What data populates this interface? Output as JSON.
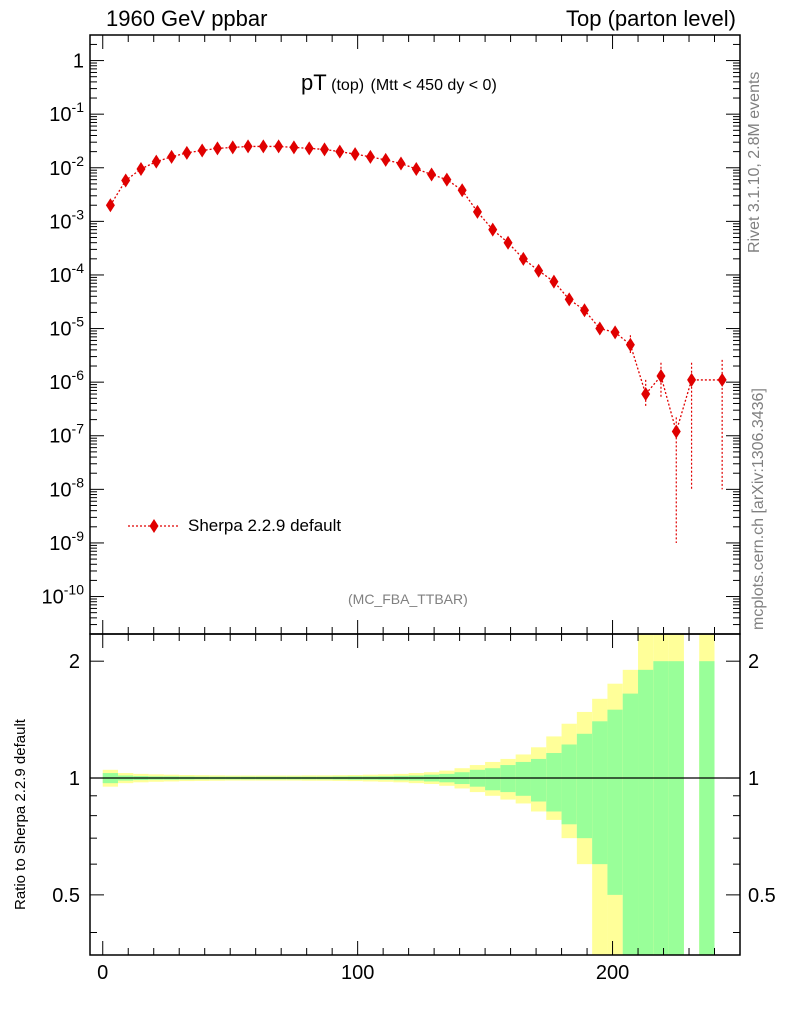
{
  "header": {
    "left": "1960 GeV ppbar",
    "right": "Top (parton level)"
  },
  "side_labels": {
    "rivet": "Rivet 3.1.10,  2.8M events",
    "mcplots": "mcplots.cern.ch [arXiv:1306.3436]"
  },
  "colors": {
    "series": "#e00000",
    "band_outer": "#ffff99",
    "band_inner": "#99ff99",
    "analysis_label": "#808080"
  },
  "chart_data": [
    {
      "type": "scatter",
      "title_main": "pT",
      "title_sub": "(top)",
      "title_cond": "(Mtt < 450 dy < 0)",
      "analysis_label": "(MC_FBA_TTBAR)",
      "xlabel": "",
      "ylabel": "",
      "y_scale": "log",
      "xlim": [
        -5,
        250
      ],
      "ylim": [
        2e-11,
        3
      ],
      "yticks": [
        "10^-10",
        "10^-9",
        "10^-8",
        "10^-7",
        "10^-6",
        "10^-5",
        "10^-4",
        "10^-3",
        "10^-2",
        "10^-1",
        "1"
      ],
      "legend_position": "lower-left",
      "series": [
        {
          "name": "Sherpa 2.2.9 default",
          "style": "dotted line with diamond markers",
          "x": [
            3,
            9,
            15,
            21,
            27,
            33,
            39,
            45,
            51,
            57,
            63,
            69,
            75,
            81,
            87,
            93,
            99,
            105,
            111,
            117,
            123,
            129,
            135,
            141,
            147,
            153,
            159,
            165,
            171,
            177,
            183,
            189,
            195,
            201,
            207,
            213,
            219,
            225,
            231,
            243
          ],
          "y": [
            0.002,
            0.0058,
            0.0095,
            0.013,
            0.016,
            0.019,
            0.021,
            0.023,
            0.024,
            0.025,
            0.025,
            0.025,
            0.024,
            0.023,
            0.022,
            0.02,
            0.018,
            0.016,
            0.014,
            0.012,
            0.0095,
            0.0075,
            0.006,
            0.0038,
            0.0015,
            0.0007,
            0.0004,
            0.0002,
            0.00012,
            7.5e-05,
            3.5e-05,
            2.2e-05,
            1e-05,
            8.5e-06,
            5e-06,
            6e-07,
            1.3e-06,
            1.2e-07,
            1.1e-06,
            1.1e-06
          ],
          "err_low": [
            0.0001,
            0.0003,
            0.0004,
            0.0005,
            0.0005,
            0.0006,
            0.0006,
            0.0006,
            0.0006,
            0.0006,
            0.0006,
            0.0006,
            0.0006,
            0.0006,
            0.0006,
            0.0005,
            0.0005,
            0.0005,
            0.0004,
            0.0004,
            0.0003,
            0.0003,
            0.0002,
            0.00015,
            6e-05,
            3e-05,
            2e-05,
            1e-05,
            8e-06,
            5e-06,
            3e-06,
            2.5e-06,
            1.5e-06,
            1.5e-06,
            1.5e-06,
            2.5e-07,
            8e-07,
            1.19e-07,
            1.09e-06,
            1.09e-06
          ],
          "err_high": [
            0.0001,
            0.0003,
            0.0004,
            0.0005,
            0.0005,
            0.0006,
            0.0006,
            0.0006,
            0.0006,
            0.0006,
            0.0006,
            0.0006,
            0.0006,
            0.0006,
            0.0006,
            0.0005,
            0.0005,
            0.0005,
            0.0004,
            0.0004,
            0.0003,
            0.0003,
            0.0002,
            0.00015,
            6e-05,
            3e-05,
            2e-05,
            1e-05,
            8e-06,
            5e-06,
            3e-06,
            2.5e-06,
            2e-06,
            2e-06,
            2.5e-06,
            5e-07,
            1e-06,
            1e-07,
            1.2e-06,
            1.5e-06
          ]
        }
      ]
    },
    {
      "type": "area",
      "ylabel": "Ratio to Sherpa 2.2.9 default",
      "xlabel": "",
      "y_scale": "log",
      "xlim": [
        -5,
        250
      ],
      "ylim": [
        0.35,
        2.35
      ],
      "xticks": [
        0,
        100,
        200
      ],
      "yticks": [
        0.5,
        1,
        2
      ],
      "reference_line": 1,
      "bands": {
        "x_edges": [
          0,
          6,
          12,
          18,
          24,
          30,
          36,
          42,
          48,
          54,
          60,
          66,
          72,
          78,
          84,
          90,
          96,
          102,
          108,
          114,
          120,
          126,
          132,
          138,
          144,
          150,
          156,
          162,
          168,
          174,
          180,
          186,
          192,
          198,
          204,
          210,
          216,
          222,
          228,
          234,
          240,
          246
        ],
        "outer_low": [
          0.95,
          0.97,
          0.975,
          0.978,
          0.98,
          0.982,
          0.983,
          0.984,
          0.985,
          0.985,
          0.985,
          0.985,
          0.985,
          0.984,
          0.984,
          0.983,
          0.982,
          0.98,
          0.978,
          0.975,
          0.97,
          0.965,
          0.955,
          0.94,
          0.92,
          0.9,
          0.88,
          0.86,
          0.82,
          0.78,
          0.7,
          0.6,
          0.35,
          0.35,
          0.35,
          0.35,
          0.35,
          0.35,
          null,
          0.35,
          null
        ],
        "outer_high": [
          1.05,
          1.03,
          1.025,
          1.022,
          1.02,
          1.018,
          1.017,
          1.016,
          1.015,
          1.015,
          1.015,
          1.015,
          1.015,
          1.016,
          1.016,
          1.017,
          1.018,
          1.02,
          1.022,
          1.025,
          1.03,
          1.035,
          1.045,
          1.06,
          1.08,
          1.1,
          1.12,
          1.15,
          1.2,
          1.28,
          1.38,
          1.48,
          1.6,
          1.75,
          1.9,
          2.35,
          2.35,
          2.35,
          null,
          2.35,
          null
        ],
        "inner_low": [
          0.97,
          0.985,
          0.988,
          0.99,
          0.99,
          0.991,
          0.992,
          0.992,
          0.992,
          0.992,
          0.992,
          0.992,
          0.992,
          0.992,
          0.992,
          0.991,
          0.99,
          0.99,
          0.989,
          0.987,
          0.985,
          0.98,
          0.975,
          0.965,
          0.95,
          0.93,
          0.92,
          0.9,
          0.87,
          0.82,
          0.76,
          0.7,
          0.6,
          0.5,
          0.35,
          0.35,
          0.35,
          0.35,
          null,
          0.35,
          null
        ],
        "inner_high": [
          1.03,
          1.015,
          1.012,
          1.01,
          1.01,
          1.009,
          1.008,
          1.008,
          1.008,
          1.008,
          1.008,
          1.008,
          1.008,
          1.008,
          1.008,
          1.009,
          1.01,
          1.01,
          1.011,
          1.013,
          1.015,
          1.02,
          1.025,
          1.035,
          1.05,
          1.06,
          1.08,
          1.1,
          1.12,
          1.16,
          1.22,
          1.3,
          1.4,
          1.5,
          1.65,
          1.9,
          2.0,
          2.0,
          null,
          2.0,
          null
        ]
      }
    }
  ]
}
